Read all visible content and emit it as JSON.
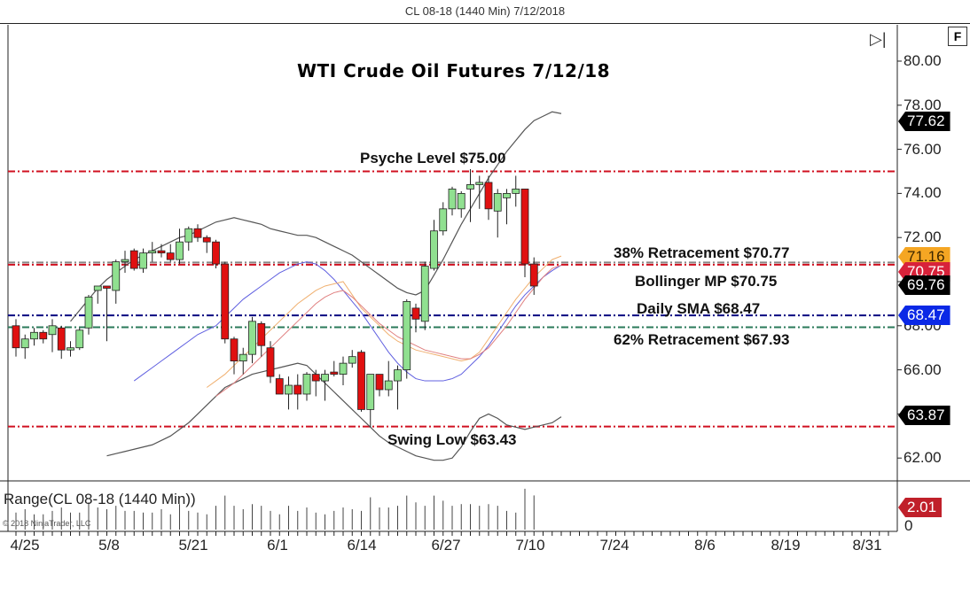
{
  "window": {
    "title": "CL 08-18 (1440 Min)  7/12/2018"
  },
  "chart": {
    "heading": "WTI Crude Oil Futures 7/12/18",
    "f_button": "F",
    "skip_icon": "▷|",
    "annotations": {
      "psyche": "Psyche Level $75.00",
      "retr38": "38% Retracement $70.77",
      "bollinger_mp": "Bollinger MP $70.75",
      "daily_sma": "Daily SMA $68.47",
      "retr62": "62% Retracement $67.93",
      "swing_low": "Swing Low $63.43"
    },
    "y_axis_labels": [
      "80.00",
      "78.00",
      "76.00",
      "74.00",
      "72.00",
      "70.00",
      "68.00",
      "66.00",
      "64.00",
      "62.00"
    ],
    "x_axis_labels": [
      "4/25",
      "5/8",
      "5/21",
      "6/1",
      "6/14",
      "6/27",
      "7/10",
      "7/24",
      "8/6",
      "8/19",
      "8/31"
    ],
    "price_tags": [
      {
        "value": "77.62",
        "bg": "#000000",
        "fg": "#ffffff"
      },
      {
        "value": "71.16",
        "bg": "#f5a623",
        "fg": "#3a2600"
      },
      {
        "value": "70.75",
        "bg": "#d8223a",
        "fg": "#ffffff"
      },
      {
        "value": "69.76",
        "bg": "#000000",
        "fg": "#ffffff"
      },
      {
        "value": "68.47",
        "bg": "#0a28e6",
        "fg": "#ffffff"
      },
      {
        "value": "63.87",
        "bg": "#000000",
        "fg": "#ffffff"
      }
    ],
    "range_panel": {
      "label": "Range(CL 08-18 (1440 Min))",
      "copyright": "© 2018 NinjaTrader, LLC",
      "zero_label": "0",
      "tag": {
        "value": "2.01",
        "bg": "#c0202a",
        "fg": "#ffffff"
      }
    },
    "colors": {
      "bull": "#90e090",
      "bear": "#e01010",
      "psyche_line": "#d01020",
      "retr_line": "#d01020",
      "bollinger_mp_line": "#888888",
      "sma_line": "#000080",
      "retr62_line": "#2a7a5a",
      "bb_band": "#555555",
      "ema_orange": "#f0b070",
      "ema_pink": "#e08080",
      "sma_blue": "#6060e0"
    }
  },
  "chart_data": {
    "type": "candlestick",
    "title": "WTI Crude Oil Futures 7/12/18",
    "subtitle": "CL 08-18 (1440 Min)  7/12/2018",
    "ylim": [
      61.0,
      81.0
    ],
    "yticks": [
      62,
      64,
      66,
      68,
      70,
      72,
      74,
      76,
      78,
      80
    ],
    "xticks": [
      "4/25",
      "5/8",
      "5/21",
      "6/1",
      "6/14",
      "6/27",
      "7/10",
      "7/24",
      "8/6",
      "8/19",
      "8/31"
    ],
    "horizontal_levels": [
      {
        "name": "Psyche Level",
        "value": 75.0
      },
      {
        "name": "38% Retracement",
        "value": 70.77
      },
      {
        "name": "Bollinger MP",
        "value": 70.75
      },
      {
        "name": "Daily SMA",
        "value": 68.47
      },
      {
        "name": "62% Retracement",
        "value": 67.93
      },
      {
        "name": "Swing Low",
        "value": 63.43
      }
    ],
    "last_values": {
      "upper_bb": 77.62,
      "ema": 71.16,
      "bollinger_mp": 70.75,
      "close": 69.76,
      "sma": 68.47,
      "lower_bb": 63.87,
      "range": 2.01
    },
    "candles": [
      {
        "o": 68.0,
        "h": 68.3,
        "l": 66.6,
        "c": 67.0
      },
      {
        "o": 67.0,
        "h": 67.6,
        "l": 66.5,
        "c": 67.4
      },
      {
        "o": 67.4,
        "h": 67.9,
        "l": 67.1,
        "c": 67.7
      },
      {
        "o": 67.7,
        "h": 67.8,
        "l": 67.2,
        "c": 67.4
      },
      {
        "o": 67.6,
        "h": 68.3,
        "l": 66.8,
        "c": 68.0
      },
      {
        "o": 67.9,
        "h": 68.0,
        "l": 66.5,
        "c": 66.9
      },
      {
        "o": 66.9,
        "h": 67.3,
        "l": 66.6,
        "c": 67.0
      },
      {
        "o": 67.0,
        "h": 67.9,
        "l": 66.9,
        "c": 67.8
      },
      {
        "o": 67.9,
        "h": 69.4,
        "l": 67.6,
        "c": 69.3
      },
      {
        "o": 69.6,
        "h": 69.6,
        "l": 69.0,
        "c": 69.8
      },
      {
        "o": 69.8,
        "h": 69.8,
        "l": 67.3,
        "c": 69.7
      },
      {
        "o": 69.6,
        "h": 71.0,
        "l": 69.0,
        "c": 70.9
      },
      {
        "o": 70.9,
        "h": 71.4,
        "l": 70.4,
        "c": 71.0
      },
      {
        "o": 71.4,
        "h": 71.5,
        "l": 70.5,
        "c": 70.6
      },
      {
        "o": 70.6,
        "h": 71.5,
        "l": 70.4,
        "c": 71.3
      },
      {
        "o": 71.3,
        "h": 71.8,
        "l": 70.9,
        "c": 71.4
      },
      {
        "o": 71.4,
        "h": 71.7,
        "l": 71.1,
        "c": 71.3
      },
      {
        "o": 71.3,
        "h": 71.7,
        "l": 70.9,
        "c": 71.0
      },
      {
        "o": 71.0,
        "h": 72.4,
        "l": 70.8,
        "c": 71.8
      },
      {
        "o": 71.8,
        "h": 72.5,
        "l": 71.4,
        "c": 72.4
      },
      {
        "o": 72.4,
        "h": 72.6,
        "l": 71.8,
        "c": 72.0
      },
      {
        "o": 72.0,
        "h": 72.1,
        "l": 71.3,
        "c": 71.8
      },
      {
        "o": 71.8,
        "h": 71.9,
        "l": 70.6,
        "c": 70.8
      },
      {
        "o": 70.8,
        "h": 70.9,
        "l": 67.2,
        "c": 67.4
      },
      {
        "o": 67.4,
        "h": 67.5,
        "l": 65.8,
        "c": 66.4
      },
      {
        "o": 66.4,
        "h": 67.0,
        "l": 65.8,
        "c": 66.7
      },
      {
        "o": 66.7,
        "h": 68.4,
        "l": 66.3,
        "c": 68.2
      },
      {
        "o": 68.1,
        "h": 68.2,
        "l": 66.6,
        "c": 67.1
      },
      {
        "o": 67.0,
        "h": 67.3,
        "l": 65.4,
        "c": 65.7
      },
      {
        "o": 65.6,
        "h": 65.8,
        "l": 64.9,
        "c": 64.9
      },
      {
        "o": 64.9,
        "h": 65.7,
        "l": 64.2,
        "c": 65.3
      },
      {
        "o": 65.3,
        "h": 65.8,
        "l": 64.2,
        "c": 64.9
      },
      {
        "o": 64.9,
        "h": 65.9,
        "l": 64.6,
        "c": 65.8
      },
      {
        "o": 65.8,
        "h": 66.0,
        "l": 64.8,
        "c": 65.5
      },
      {
        "o": 65.5,
        "h": 66.0,
        "l": 64.6,
        "c": 65.8
      },
      {
        "o": 65.9,
        "h": 66.4,
        "l": 65.7,
        "c": 65.8
      },
      {
        "o": 65.8,
        "h": 66.6,
        "l": 65.3,
        "c": 66.3
      },
      {
        "o": 66.3,
        "h": 66.9,
        "l": 66.1,
        "c": 66.6
      },
      {
        "o": 66.8,
        "h": 66.9,
        "l": 64.1,
        "c": 64.2
      },
      {
        "o": 64.2,
        "h": 65.8,
        "l": 63.4,
        "c": 65.8
      },
      {
        "o": 65.8,
        "h": 65.8,
        "l": 64.8,
        "c": 65.1
      },
      {
        "o": 65.1,
        "h": 66.4,
        "l": 64.8,
        "c": 65.5
      },
      {
        "o": 65.5,
        "h": 66.2,
        "l": 64.2,
        "c": 66.0
      },
      {
        "o": 66.0,
        "h": 69.2,
        "l": 65.6,
        "c": 69.1
      },
      {
        "o": 68.8,
        "h": 69.0,
        "l": 67.7,
        "c": 68.3
      },
      {
        "o": 68.2,
        "h": 70.9,
        "l": 67.8,
        "c": 70.7
      },
      {
        "o": 70.6,
        "h": 72.8,
        "l": 70.5,
        "c": 72.3
      },
      {
        "o": 72.3,
        "h": 73.6,
        "l": 72.1,
        "c": 73.3
      },
      {
        "o": 73.3,
        "h": 74.3,
        "l": 73.0,
        "c": 74.2
      },
      {
        "o": 73.3,
        "h": 74.1,
        "l": 72.9,
        "c": 74.0
      },
      {
        "o": 74.2,
        "h": 75.1,
        "l": 72.7,
        "c": 74.4
      },
      {
        "o": 74.4,
        "h": 74.8,
        "l": 73.3,
        "c": 74.5
      },
      {
        "o": 74.5,
        "h": 74.8,
        "l": 72.8,
        "c": 73.3
      },
      {
        "o": 73.2,
        "h": 74.2,
        "l": 72.0,
        "c": 74.0
      },
      {
        "o": 73.8,
        "h": 74.2,
        "l": 72.6,
        "c": 74.0
      },
      {
        "o": 74.0,
        "h": 74.8,
        "l": 73.4,
        "c": 74.2
      },
      {
        "o": 74.2,
        "h": 74.2,
        "l": 70.2,
        "c": 70.8
      },
      {
        "o": 70.8,
        "h": 71.1,
        "l": 69.4,
        "c": 69.8
      }
    ],
    "upper_bollinger": [
      68.2,
      68.7,
      69.2,
      69.7,
      70.1,
      70.4,
      70.7,
      71.0,
      71.2,
      71.4,
      71.6,
      71.8,
      72.0,
      72.1,
      72.3,
      72.5,
      72.7,
      72.8,
      72.9,
      72.8,
      72.7,
      72.6,
      72.4,
      72.3,
      72.2,
      72.1,
      72.1,
      72.0,
      71.8,
      71.6,
      71.4,
      71.2,
      70.9,
      70.6,
      70.3,
      70.0,
      69.7,
      69.5,
      69.4,
      69.6,
      70.3,
      71.0,
      71.8,
      72.6,
      73.3,
      74.0,
      74.7,
      75.3,
      75.9,
      76.4,
      76.9,
      77.3,
      77.5,
      77.7,
      77.62
    ],
    "lower_bollinger": [
      62.1,
      62.2,
      62.3,
      62.4,
      62.5,
      62.6,
      62.8,
      63.0,
      63.3,
      63.6,
      64.0,
      64.4,
      64.8,
      65.2,
      65.4,
      65.6,
      65.8,
      65.9,
      66.0,
      66.1,
      66.2,
      66.3,
      66.2,
      65.8,
      65.4,
      65.0,
      64.6,
      64.2,
      63.8,
      63.4,
      63.0,
      62.7,
      62.5,
      62.3,
      62.1,
      62.0,
      61.9,
      61.9,
      62.0,
      62.5,
      63.2,
      63.8,
      64.0,
      63.8,
      63.5,
      63.4,
      63.3,
      63.4,
      63.5,
      63.6,
      63.87
    ],
    "bollinger_mid": [
      65.5,
      65.8,
      66.1,
      66.4,
      66.7,
      67.0,
      67.3,
      67.6,
      67.8,
      68.0,
      68.4,
      68.8,
      69.2,
      69.5,
      69.8,
      70.1,
      70.4,
      70.6,
      70.8,
      70.9,
      70.8,
      70.5,
      70.1,
      69.6,
      69.1,
      68.6,
      68.0,
      67.4,
      66.8,
      66.3,
      65.9,
      65.6,
      65.5,
      65.5,
      65.5,
      65.6,
      65.8,
      66.2,
      66.6,
      67.1,
      67.7,
      68.3,
      68.9,
      69.4,
      69.8,
      70.2,
      70.5,
      70.75
    ],
    "ema": [
      65.2,
      65.5,
      65.8,
      66.2,
      66.6,
      67.0,
      67.4,
      67.8,
      68.2,
      68.6,
      69.0,
      69.3,
      69.6,
      69.8,
      69.9,
      70.0,
      69.4,
      68.8,
      68.4,
      68.0,
      67.6,
      67.3,
      67.1,
      66.9,
      66.8,
      66.7,
      66.6,
      66.5,
      66.4,
      66.5,
      66.8,
      67.4,
      68.0,
      68.6,
      69.2,
      69.7,
      70.2,
      70.6,
      71.0,
      71.16
    ],
    "ema_pink": [
      64.8,
      65.1,
      65.4,
      65.8,
      66.2,
      66.6,
      67.0,
      67.4,
      67.8,
      68.2,
      68.6,
      69.0,
      69.3,
      69.5,
      69.6,
      69.3,
      68.9,
      68.5,
      68.1,
      67.8,
      67.5,
      67.3,
      67.1,
      66.9,
      66.8,
      66.7,
      66.6,
      66.5,
      66.5,
      66.7,
      67.0,
      67.5,
      68.0,
      68.6,
      69.2,
      69.7,
      70.2,
      70.6,
      70.75
    ],
    "range_values": [
      1.0,
      1.2,
      0.9,
      0.9,
      1.1,
      1.3,
      1.0,
      1.0,
      1.6,
      1.3,
      1.2,
      1.4,
      1.1,
      1.1,
      1.0,
      1.0,
      1.2,
      0.9,
      1.5,
      1.1,
      1.0,
      0.9,
      1.4,
      2.0,
      1.4,
      1.2,
      1.5,
      1.4,
      1.1,
      0.9,
      1.4,
      1.1,
      1.3,
      1.0,
      0.9,
      1.1,
      1.3,
      1.2,
      1.1,
      1.9,
      1.3,
      1.3,
      1.4,
      2.0,
      1.6,
      1.4,
      2.0,
      1.7,
      1.4,
      1.5,
      1.5,
      1.4,
      1.5,
      1.4,
      1.1,
      1.0,
      2.4,
      2.01
    ],
    "range_ylim": [
      0,
      2.5
    ]
  }
}
